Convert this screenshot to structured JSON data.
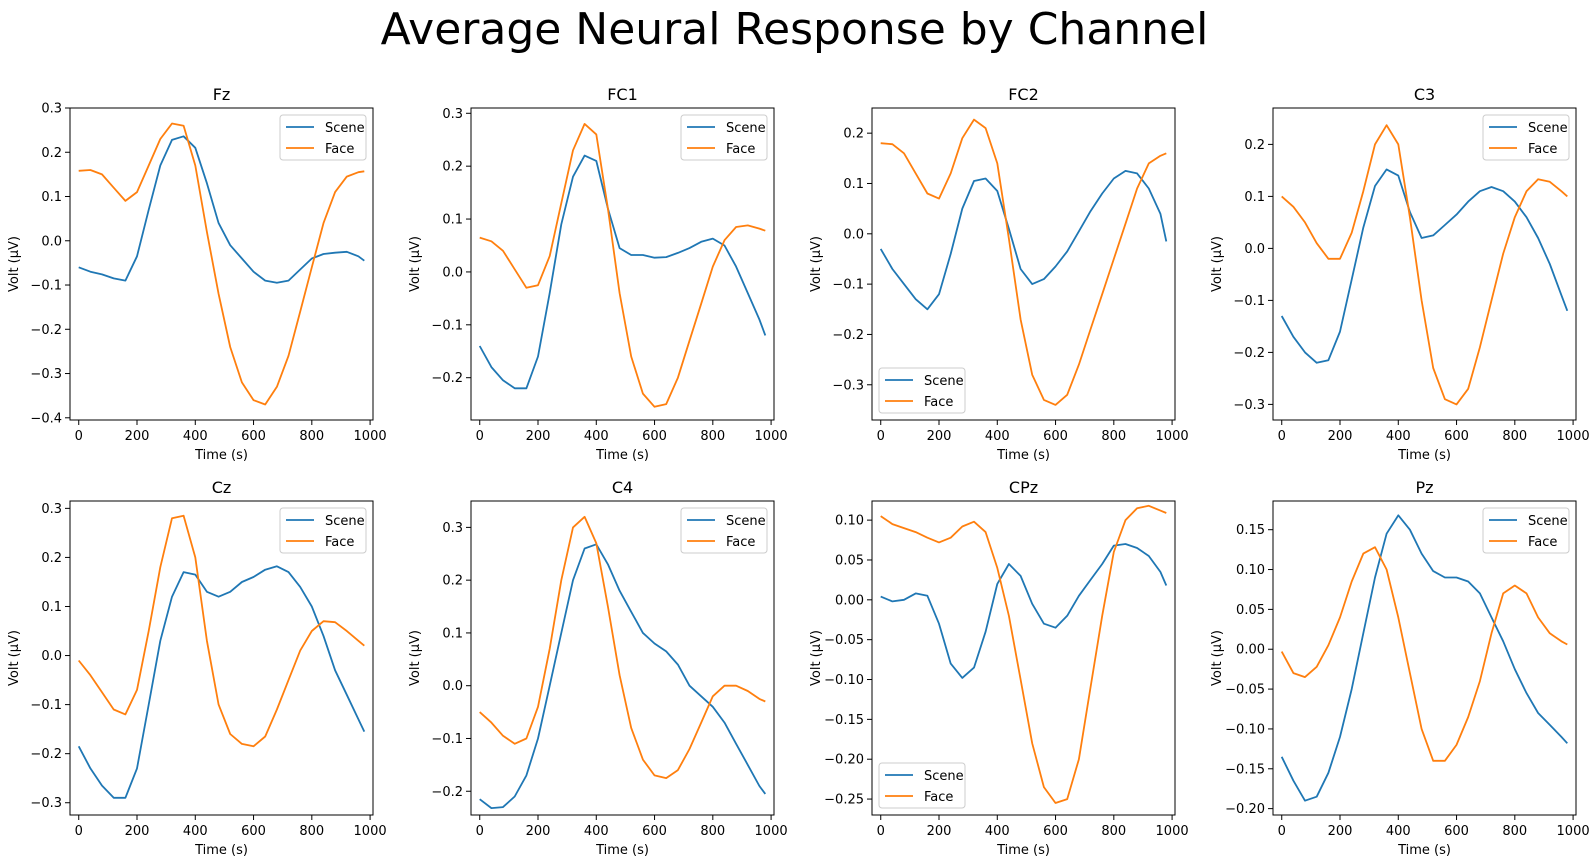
{
  "title": "Average Neural Response by Channel",
  "colors": {
    "Scene": "#1f77b4",
    "Face": "#ff7f0e"
  },
  "chart_data": [
    {
      "type": "line",
      "title": "Fz",
      "xlabel": "Time (s)",
      "ylabel": "Volt (µV)",
      "xlim": [
        -30,
        1010
      ],
      "ylim": [
        -0.405,
        0.3
      ],
      "xticks": [
        0,
        200,
        400,
        600,
        800,
        1000
      ],
      "yticks": [
        -0.4,
        -0.3,
        -0.2,
        -0.1,
        0.0,
        0.1,
        0.2,
        0.3
      ],
      "legend": "top-right",
      "x": [
        0,
        40,
        80,
        120,
        160,
        200,
        240,
        280,
        320,
        360,
        400,
        440,
        480,
        520,
        560,
        600,
        640,
        680,
        720,
        760,
        800,
        840,
        880,
        920,
        960,
        980
      ],
      "series": [
        {
          "name": "Scene",
          "values": [
            -0.06,
            -0.07,
            -0.076,
            -0.085,
            -0.09,
            -0.035,
            0.07,
            0.17,
            0.228,
            0.236,
            0.21,
            0.13,
            0.04,
            -0.01,
            -0.04,
            -0.07,
            -0.09,
            -0.095,
            -0.09,
            -0.065,
            -0.04,
            -0.03,
            -0.027,
            -0.025,
            -0.035,
            -0.045
          ]
        },
        {
          "name": "Face",
          "values": [
            0.158,
            0.16,
            0.15,
            0.12,
            0.09,
            0.11,
            0.17,
            0.23,
            0.265,
            0.26,
            0.17,
            0.02,
            -0.12,
            -0.24,
            -0.32,
            -0.36,
            -0.37,
            -0.33,
            -0.26,
            -0.16,
            -0.06,
            0.04,
            0.11,
            0.145,
            0.155,
            0.157
          ]
        }
      ]
    },
    {
      "type": "line",
      "title": "FC1",
      "xlabel": "Time (s)",
      "ylabel": "Volt (µV)",
      "xlim": [
        -30,
        1010
      ],
      "ylim": [
        -0.28,
        0.31
      ],
      "xticks": [
        0,
        200,
        400,
        600,
        800,
        1000
      ],
      "yticks": [
        -0.2,
        -0.1,
        0.0,
        0.1,
        0.2,
        0.3
      ],
      "legend": "top-right",
      "x": [
        0,
        40,
        80,
        120,
        160,
        200,
        240,
        280,
        320,
        360,
        400,
        440,
        480,
        520,
        560,
        600,
        640,
        680,
        720,
        760,
        800,
        840,
        880,
        920,
        960,
        980
      ],
      "series": [
        {
          "name": "Scene",
          "values": [
            -0.14,
            -0.18,
            -0.205,
            -0.22,
            -0.22,
            -0.16,
            -0.04,
            0.09,
            0.18,
            0.22,
            0.21,
            0.12,
            0.045,
            0.032,
            0.032,
            0.027,
            0.028,
            0.036,
            0.045,
            0.057,
            0.063,
            0.05,
            0.01,
            -0.04,
            -0.09,
            -0.12
          ]
        },
        {
          "name": "Face",
          "values": [
            0.065,
            0.058,
            0.04,
            0.005,
            -0.03,
            -0.025,
            0.03,
            0.13,
            0.23,
            0.28,
            0.26,
            0.12,
            -0.04,
            -0.16,
            -0.23,
            -0.255,
            -0.25,
            -0.2,
            -0.13,
            -0.06,
            0.01,
            0.06,
            0.085,
            0.088,
            0.082,
            0.078
          ]
        }
      ]
    },
    {
      "type": "line",
      "title": "FC2",
      "xlabel": "Time (s)",
      "ylabel": "Volt (µV)",
      "xlim": [
        -30,
        1010
      ],
      "ylim": [
        -0.37,
        0.25
      ],
      "xticks": [
        0,
        200,
        400,
        600,
        800,
        1000
      ],
      "yticks": [
        -0.3,
        -0.2,
        -0.1,
        0.0,
        0.1,
        0.2
      ],
      "legend": "bottom-left",
      "x": [
        0,
        40,
        80,
        120,
        160,
        200,
        240,
        280,
        320,
        360,
        400,
        440,
        480,
        520,
        560,
        600,
        640,
        680,
        720,
        760,
        800,
        840,
        880,
        920,
        960,
        980
      ],
      "series": [
        {
          "name": "Scene",
          "values": [
            -0.03,
            -0.07,
            -0.1,
            -0.13,
            -0.15,
            -0.12,
            -0.04,
            0.05,
            0.105,
            0.11,
            0.085,
            0.01,
            -0.07,
            -0.1,
            -0.09,
            -0.065,
            -0.035,
            0.005,
            0.045,
            0.08,
            0.11,
            0.125,
            0.12,
            0.09,
            0.04,
            -0.015
          ]
        },
        {
          "name": "Face",
          "values": [
            0.18,
            0.178,
            0.16,
            0.12,
            0.08,
            0.07,
            0.12,
            0.19,
            0.227,
            0.21,
            0.14,
            -0.01,
            -0.17,
            -0.28,
            -0.33,
            -0.34,
            -0.32,
            -0.26,
            -0.19,
            -0.12,
            -0.05,
            0.02,
            0.09,
            0.14,
            0.155,
            0.16
          ]
        }
      ]
    },
    {
      "type": "line",
      "title": "C3",
      "xlabel": "Time (s)",
      "ylabel": "Volt (µV)",
      "xlim": [
        -30,
        1010
      ],
      "ylim": [
        -0.33,
        0.27
      ],
      "xticks": [
        0,
        200,
        400,
        600,
        800,
        1000
      ],
      "yticks": [
        -0.3,
        -0.2,
        -0.1,
        0.0,
        0.1,
        0.2
      ],
      "legend": "top-right",
      "x": [
        0,
        40,
        80,
        120,
        160,
        200,
        240,
        280,
        320,
        360,
        400,
        440,
        480,
        520,
        560,
        600,
        640,
        680,
        720,
        760,
        800,
        840,
        880,
        920,
        960,
        980
      ],
      "series": [
        {
          "name": "Scene",
          "values": [
            -0.13,
            -0.17,
            -0.2,
            -0.22,
            -0.215,
            -0.16,
            -0.06,
            0.04,
            0.12,
            0.152,
            0.14,
            0.07,
            0.02,
            0.025,
            0.045,
            0.065,
            0.09,
            0.11,
            0.118,
            0.11,
            0.09,
            0.06,
            0.02,
            -0.03,
            -0.09,
            -0.12
          ]
        },
        {
          "name": "Face",
          "values": [
            0.1,
            0.08,
            0.05,
            0.01,
            -0.02,
            -0.02,
            0.03,
            0.11,
            0.2,
            0.237,
            0.2,
            0.06,
            -0.1,
            -0.23,
            -0.29,
            -0.3,
            -0.27,
            -0.19,
            -0.1,
            -0.01,
            0.06,
            0.11,
            0.133,
            0.128,
            0.11,
            0.1
          ]
        }
      ]
    },
    {
      "type": "line",
      "title": "Cz",
      "xlabel": "Time (s)",
      "ylabel": "Volt (µV)",
      "xlim": [
        -30,
        1010
      ],
      "ylim": [
        -0.325,
        0.315
      ],
      "xticks": [
        0,
        200,
        400,
        600,
        800,
        1000
      ],
      "yticks": [
        -0.3,
        -0.2,
        -0.1,
        0.0,
        0.1,
        0.2,
        0.3
      ],
      "legend": "top-right",
      "x": [
        0,
        40,
        80,
        120,
        160,
        200,
        240,
        280,
        320,
        360,
        400,
        440,
        480,
        520,
        560,
        600,
        640,
        680,
        720,
        760,
        800,
        840,
        880,
        920,
        960,
        980
      ],
      "series": [
        {
          "name": "Scene",
          "values": [
            -0.185,
            -0.23,
            -0.265,
            -0.29,
            -0.29,
            -0.23,
            -0.1,
            0.03,
            0.12,
            0.17,
            0.165,
            0.13,
            0.12,
            0.13,
            0.15,
            0.16,
            0.175,
            0.182,
            0.17,
            0.14,
            0.1,
            0.04,
            -0.03,
            -0.08,
            -0.13,
            -0.155
          ]
        },
        {
          "name": "Face",
          "values": [
            -0.01,
            -0.04,
            -0.075,
            -0.11,
            -0.12,
            -0.07,
            0.05,
            0.18,
            0.28,
            0.285,
            0.2,
            0.03,
            -0.1,
            -0.16,
            -0.18,
            -0.185,
            -0.165,
            -0.11,
            -0.05,
            0.01,
            0.05,
            0.07,
            0.068,
            0.05,
            0.03,
            0.02
          ]
        }
      ]
    },
    {
      "type": "line",
      "title": "C4",
      "xlabel": "Time (s)",
      "ylabel": "Volt (µV)",
      "xlim": [
        -30,
        1010
      ],
      "ylim": [
        -0.245,
        0.35
      ],
      "xticks": [
        0,
        200,
        400,
        600,
        800,
        1000
      ],
      "yticks": [
        -0.2,
        -0.1,
        0.0,
        0.1,
        0.2,
        0.3
      ],
      "legend": "top-right",
      "x": [
        0,
        40,
        80,
        120,
        160,
        200,
        240,
        280,
        320,
        360,
        400,
        440,
        480,
        520,
        560,
        600,
        640,
        680,
        720,
        760,
        800,
        840,
        880,
        920,
        960,
        980
      ],
      "series": [
        {
          "name": "Scene",
          "values": [
            -0.215,
            -0.232,
            -0.23,
            -0.21,
            -0.17,
            -0.1,
            0.0,
            0.1,
            0.2,
            0.26,
            0.268,
            0.23,
            0.18,
            0.14,
            0.1,
            0.08,
            0.065,
            0.04,
            0.0,
            -0.02,
            -0.04,
            -0.07,
            -0.11,
            -0.15,
            -0.19,
            -0.205
          ]
        },
        {
          "name": "Face",
          "values": [
            -0.05,
            -0.07,
            -0.095,
            -0.11,
            -0.1,
            -0.04,
            0.07,
            0.2,
            0.3,
            0.32,
            0.27,
            0.15,
            0.02,
            -0.08,
            -0.14,
            -0.17,
            -0.175,
            -0.16,
            -0.12,
            -0.07,
            -0.02,
            0.0,
            0.0,
            -0.01,
            -0.025,
            -0.03
          ]
        }
      ]
    },
    {
      "type": "line",
      "title": "CPz",
      "xlabel": "Time (s)",
      "ylabel": "Volt (µV)",
      "xlim": [
        -30,
        1010
      ],
      "ylim": [
        -0.27,
        0.124
      ],
      "xticks": [
        0,
        200,
        400,
        600,
        800,
        1000
      ],
      "yticks": [
        -0.25,
        -0.2,
        -0.15,
        -0.1,
        -0.05,
        0.0,
        0.05,
        0.1
      ],
      "legend": "bottom-left",
      "x": [
        0,
        40,
        80,
        120,
        160,
        200,
        240,
        280,
        320,
        360,
        400,
        440,
        480,
        520,
        560,
        600,
        640,
        680,
        720,
        760,
        800,
        840,
        880,
        920,
        960,
        980
      ],
      "series": [
        {
          "name": "Scene",
          "values": [
            0.004,
            -0.002,
            0.0,
            0.008,
            0.005,
            -0.03,
            -0.08,
            -0.098,
            -0.085,
            -0.04,
            0.02,
            0.045,
            0.03,
            -0.005,
            -0.03,
            -0.035,
            -0.02,
            0.005,
            0.025,
            0.045,
            0.068,
            0.07,
            0.065,
            0.055,
            0.035,
            0.018
          ]
        },
        {
          "name": "Face",
          "values": [
            0.105,
            0.095,
            0.09,
            0.085,
            0.078,
            0.072,
            0.078,
            0.092,
            0.098,
            0.085,
            0.04,
            -0.02,
            -0.1,
            -0.18,
            -0.235,
            -0.255,
            -0.25,
            -0.2,
            -0.11,
            -0.02,
            0.06,
            0.1,
            0.115,
            0.118,
            0.112,
            0.109
          ]
        }
      ]
    },
    {
      "type": "line",
      "title": "Pz",
      "xlabel": "Time (s)",
      "ylabel": "Volt (µV)",
      "xlim": [
        -30,
        1010
      ],
      "ylim": [
        -0.208,
        0.186
      ],
      "xticks": [
        0,
        200,
        400,
        600,
        800,
        1000
      ],
      "yticks": [
        -0.2,
        -0.15,
        -0.1,
        -0.05,
        0.0,
        0.05,
        0.1,
        0.15
      ],
      "legend": "top-right",
      "x": [
        0,
        40,
        80,
        120,
        160,
        200,
        240,
        280,
        320,
        360,
        400,
        440,
        480,
        520,
        560,
        600,
        640,
        680,
        720,
        760,
        800,
        840,
        880,
        920,
        960,
        980
      ],
      "series": [
        {
          "name": "Scene",
          "values": [
            -0.135,
            -0.165,
            -0.19,
            -0.185,
            -0.155,
            -0.11,
            -0.05,
            0.02,
            0.09,
            0.145,
            0.168,
            0.15,
            0.12,
            0.098,
            0.09,
            0.09,
            0.085,
            0.07,
            0.04,
            0.01,
            -0.025,
            -0.055,
            -0.08,
            -0.095,
            -0.11,
            -0.118
          ]
        },
        {
          "name": "Face",
          "values": [
            -0.003,
            -0.03,
            -0.035,
            -0.022,
            0.005,
            0.04,
            0.085,
            0.12,
            0.128,
            0.1,
            0.04,
            -0.03,
            -0.1,
            -0.14,
            -0.14,
            -0.12,
            -0.085,
            -0.04,
            0.02,
            0.07,
            0.08,
            0.07,
            0.04,
            0.02,
            0.01,
            0.006
          ]
        }
      ]
    }
  ]
}
